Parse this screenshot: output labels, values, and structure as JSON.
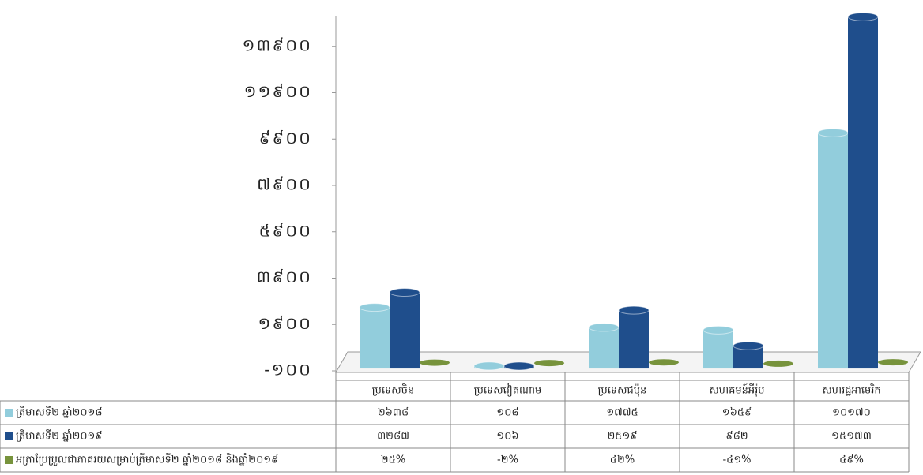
{
  "chart_data": {
    "type": "bar",
    "categories": [
      "ប្រទេសចិន",
      "ប្រទេសវៀតណាម",
      "ប្រទេសជប៉ុន",
      "សហគមន៍អឺរ៉ុប",
      "សហរដ្ឋអាមេរិក"
    ],
    "series": [
      {
        "name": "ត្រីមាសទី២ ឆ្នាំ២០១៨",
        "color": "#92cddc",
        "values": [
          2638,
          108,
          1775,
          1659,
          10170
        ],
        "value_labels": [
          "២៦៣៨",
          "១០៨",
          "១៧៧៥",
          "១៦៥៩",
          "១០១៧០"
        ]
      },
      {
        "name": "ត្រីមាសទី២ ឆ្នាំ២០១៩",
        "color": "#1f4e8c",
        "values": [
          3287,
          106,
          2519,
          982,
          15173
        ],
        "value_labels": [
          "៣២៨៧",
          "១០៦",
          "២៥១៩",
          "៩៨២",
          "១៥១៧៣"
        ]
      },
      {
        "name": "អត្រាប្រែប្រួលជាភាគរយសម្រាប់ត្រីមាសទី២ ឆ្នាំ២០១៨ និងឆ្នាំ២០១៩",
        "color": "#77933c",
        "values": [
          25,
          -2,
          42,
          -41,
          49
        ],
        "value_labels": [
          "២៥%",
          "-២%",
          "៤២%",
          "-៤១%",
          "៤៩%"
        ]
      }
    ],
    "ylim": [
      -100,
      15900
    ],
    "yticks": [
      {
        "value": -100,
        "label": "-១០០"
      },
      {
        "value": 1900,
        "label": "១៩០០"
      },
      {
        "value": 3900,
        "label": "៣៩០០"
      },
      {
        "value": 5900,
        "label": "៥៩០០"
      },
      {
        "value": 7900,
        "label": "៧៩០០"
      },
      {
        "value": 9900,
        "label": "៩៩០០"
      },
      {
        "value": 11900,
        "label": "១១៩០០"
      },
      {
        "value": 13900,
        "label": "១៣៩០០"
      }
    ]
  }
}
